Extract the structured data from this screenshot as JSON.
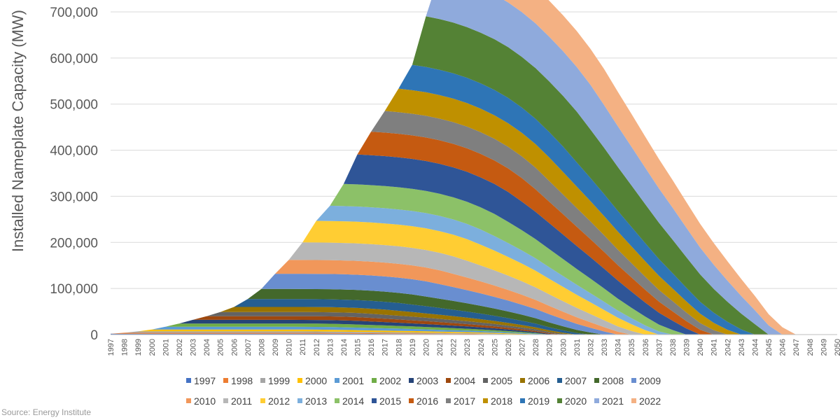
{
  "chart_data": {
    "type": "area",
    "stacked": true,
    "title": "",
    "ylabel": "Installed Nameplate Capacity (MW)",
    "xlabel": "",
    "ylim": [
      0,
      700000
    ],
    "y_ticks": [
      0,
      100000,
      200000,
      300000,
      400000,
      500000,
      600000,
      700000
    ],
    "y_tick_labels": [
      "0",
      "100,000",
      "200,000",
      "300,000",
      "400,000",
      "500,000",
      "600,000",
      "700,000"
    ],
    "x_start": 1997,
    "x_end": 2050,
    "grid": "horizontal",
    "legend_position": "bottom",
    "source": "Source: Energy Institute",
    "series": [
      {
        "name": "1997",
        "color": "#4472C4",
        "capacity": 2000,
        "lifespan": 29
      },
      {
        "name": "1998",
        "color": "#ED7D31",
        "capacity": 2000,
        "lifespan": 29
      },
      {
        "name": "1999",
        "color": "#A5A5A5",
        "capacity": 3000,
        "lifespan": 29
      },
      {
        "name": "2000",
        "color": "#FFC000",
        "capacity": 4000,
        "lifespan": 29
      },
      {
        "name": "2001",
        "color": "#5B9BD5",
        "capacity": 6000,
        "lifespan": 28
      },
      {
        "name": "2002",
        "color": "#70AD47",
        "capacity": 7000,
        "lifespan": 27
      },
      {
        "name": "2003",
        "color": "#264478",
        "capacity": 8000,
        "lifespan": 27
      },
      {
        "name": "2004",
        "color": "#9E480E",
        "capacity": 8000,
        "lifespan": 26
      },
      {
        "name": "2005",
        "color": "#636363",
        "capacity": 9000,
        "lifespan": 26
      },
      {
        "name": "2006",
        "color": "#997300",
        "capacity": 11000,
        "lifespan": 25
      },
      {
        "name": "2007",
        "color": "#255E91",
        "capacity": 17000,
        "lifespan": 25
      },
      {
        "name": "2008",
        "color": "#43682B",
        "capacity": 22000,
        "lifespan": 25
      },
      {
        "name": "2009",
        "color": "#698ED0",
        "capacity": 33000,
        "lifespan": 25
      },
      {
        "name": "2010",
        "color": "#F1975A",
        "capacity": 30000,
        "lifespan": 25
      },
      {
        "name": "2011",
        "color": "#B7B7B7",
        "capacity": 38000,
        "lifespan": 25
      },
      {
        "name": "2012",
        "color": "#FFCD33",
        "capacity": 47000,
        "lifespan": 25
      },
      {
        "name": "2013",
        "color": "#7CAFDD",
        "capacity": 33000,
        "lifespan": 25
      },
      {
        "name": "2014",
        "color": "#8CC168",
        "capacity": 48000,
        "lifespan": 25
      },
      {
        "name": "2015",
        "color": "#2F5597",
        "capacity": 65000,
        "lifespan": 25
      },
      {
        "name": "2016",
        "color": "#C55A11",
        "capacity": 51000,
        "lifespan": 25
      },
      {
        "name": "2017",
        "color": "#7F7F7F",
        "capacity": 47000,
        "lifespan": 25
      },
      {
        "name": "2018",
        "color": "#BF9000",
        "capacity": 51000,
        "lifespan": 25
      },
      {
        "name": "2019",
        "color": "#2E75B6",
        "capacity": 55000,
        "lifespan": 25
      },
      {
        "name": "2020",
        "color": "#548235",
        "capacity": 110000,
        "lifespan": 25
      },
      {
        "name": "2021",
        "color": "#8FAADC",
        "capacity": 97000,
        "lifespan": 25
      },
      {
        "name": "2022",
        "color": "#F4B183",
        "capacity": 78000,
        "lifespan": 25
      }
    ]
  },
  "source_text": "Source: Energy Institute"
}
